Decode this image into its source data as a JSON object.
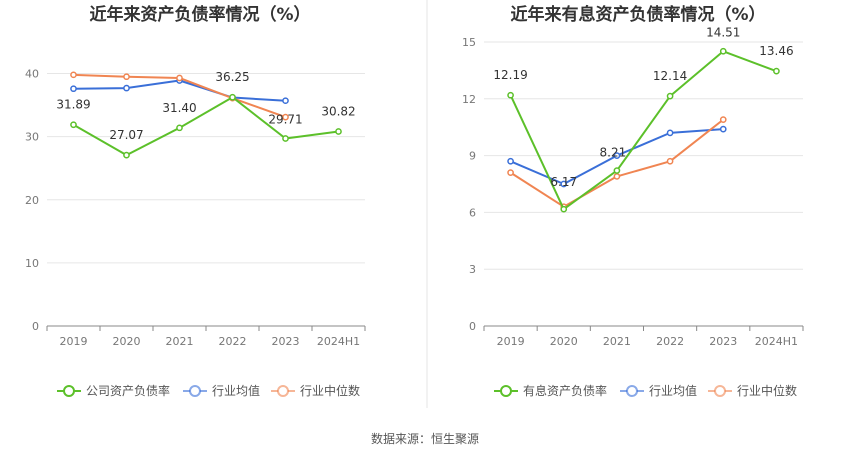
{
  "source": "数据来源：恒生聚源",
  "colors": {
    "green": "#5cc02a",
    "blue": "#3a6fd8",
    "orange": "#f08552"
  },
  "chart_data": [
    {
      "type": "line",
      "title": "近年来资产负债率情况（%）",
      "categories": [
        "2019",
        "2020",
        "2021",
        "2022",
        "2023",
        "2024H1"
      ],
      "ylim": [
        0,
        45
      ],
      "yticks": [
        0,
        10,
        20,
        30,
        40
      ],
      "grid": true,
      "legend_position": "bottom",
      "series": [
        {
          "name": "公司资产负债率",
          "color": "#5cc02a",
          "labeled": true,
          "values": [
            31.89,
            27.07,
            31.4,
            36.25,
            29.71,
            30.82
          ]
        },
        {
          "name": "行业均值",
          "color": "#3a6fd8",
          "labeled": false,
          "values": [
            37.6,
            37.7,
            38.9,
            36.2,
            35.7,
            null
          ]
        },
        {
          "name": "行业中位数",
          "color": "#f08552",
          "labeled": false,
          "values": [
            39.8,
            39.5,
            39.3,
            36.1,
            33.1,
            null
          ]
        }
      ]
    },
    {
      "type": "line",
      "title": "近年来有息资产负债率情况（%）",
      "categories": [
        "2019",
        "2020",
        "2021",
        "2022",
        "2023",
        "2024H1"
      ],
      "ylim": [
        0,
        15
      ],
      "yticks": [
        0,
        3,
        6,
        9,
        12,
        15
      ],
      "grid": true,
      "legend_position": "bottom",
      "series": [
        {
          "name": "有息资产负债率",
          "color": "#5cc02a",
          "labeled": true,
          "values": [
            12.19,
            6.17,
            8.21,
            12.14,
            14.51,
            13.46
          ]
        },
        {
          "name": "行业均值",
          "color": "#3a6fd8",
          "labeled": false,
          "values": [
            8.7,
            7.5,
            9.0,
            10.2,
            10.4,
            null
          ]
        },
        {
          "name": "行业中位数",
          "color": "#f08552",
          "labeled": false,
          "values": [
            8.1,
            6.3,
            7.9,
            8.7,
            10.9,
            null
          ]
        }
      ]
    }
  ]
}
